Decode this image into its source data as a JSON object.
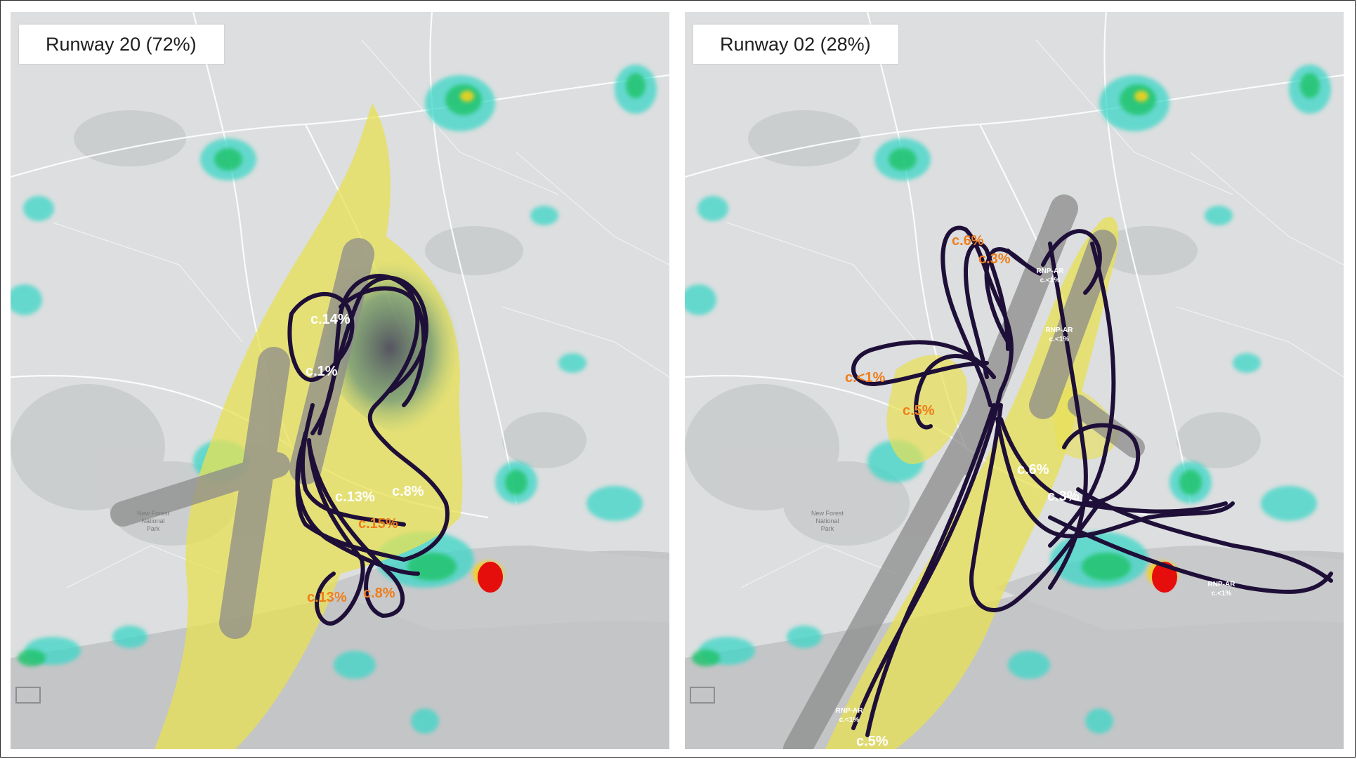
{
  "panels": [
    {
      "title": "Runway 20 (72%)",
      "route_labels": [
        "c.14%",
        "c.1%",
        "c.13%",
        "c.8%",
        "c.15%",
        "c.13%",
        "c.8%"
      ],
      "park_label": [
        "New Forest",
        "National",
        "Park"
      ]
    },
    {
      "title": "Runway 02 (28%)",
      "route_labels": [
        "c.6%",
        "c.3%",
        "c.<1%",
        "c.5%",
        "c.6%",
        "c.3%",
        "c.5%"
      ],
      "rnp_labels": [
        [
          "RNP-AR",
          "c.<1%"
        ],
        [
          "RNP-AR",
          "c.<1%"
        ],
        [
          "RNP-AR",
          "c.<1%"
        ],
        [
          "RNP-AR",
          "c.<1%"
        ]
      ],
      "park_label": [
        "New Forest",
        "National",
        "Park"
      ]
    }
  ],
  "colors": {
    "track": "#1e0f38",
    "swathe": "#e8e052",
    "runway_band": "#8c8c8c",
    "sea": "#c4c5c7",
    "land": "#dcdedf",
    "density_low": "#3cd7c8",
    "density_mid": "#22c46e",
    "density_high": "#e60d0d",
    "label_white": "#ffffff",
    "label_orange": "#ef7d1a"
  }
}
